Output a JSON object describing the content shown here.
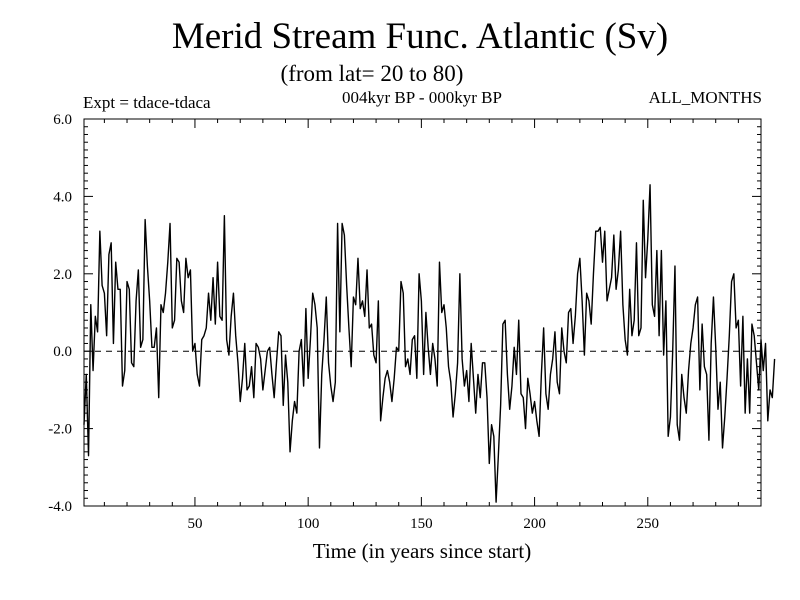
{
  "chart_data": {
    "type": "line",
    "title": "Merid Stream Func. Atlantic (Sv)",
    "subtitle": "(from lat= 20 to 80)",
    "left_label": "Expt = tdace-tdaca",
    "center_label": "004kyr BP - 000kyr BP",
    "right_label": "ALL_MONTHS",
    "xlabel": "Time (in years since start)",
    "ylabel": "",
    "xlim": [
      1,
      300
    ],
    "ylim": [
      -4.0,
      6.0
    ],
    "xticks": [
      50,
      100,
      150,
      200,
      250
    ],
    "xtick_labels": [
      "50",
      "100",
      "150",
      "200",
      "250"
    ],
    "yticks": [
      -4.0,
      -2.0,
      0.0,
      2.0,
      4.0,
      6.0
    ],
    "ytick_labels": [
      "-4.0",
      "-2.0",
      "0.0",
      "2.0",
      "4.0",
      "6.0"
    ],
    "zero_line": 0.0,
    "series": [
      {
        "name": "tdace-tdaca",
        "x_start": 1,
        "x_step": 1,
        "values": [
          -1.9,
          -0.6,
          -2.7,
          1.2,
          -0.5,
          0.9,
          0.5,
          3.1,
          1.7,
          1.5,
          0.4,
          2.5,
          2.8,
          0.2,
          2.3,
          1.6,
          1.6,
          -0.9,
          -0.5,
          1.8,
          1.6,
          -0.3,
          -0.4,
          1.3,
          2.1,
          0.1,
          0.3,
          3.4,
          2.2,
          1.3,
          0.1,
          0.1,
          0.6,
          -1.2,
          1.2,
          1.0,
          1.5,
          2.3,
          3.3,
          0.6,
          0.8,
          2.4,
          2.3,
          1.3,
          1.0,
          2.4,
          1.9,
          2.1,
          0.0,
          0.2,
          -0.6,
          -0.9,
          0.3,
          0.4,
          0.6,
          1.5,
          0.8,
          1.9,
          0.7,
          2.3,
          0.9,
          0.8,
          3.5,
          0.3,
          -0.1,
          0.9,
          1.5,
          0.4,
          -0.3,
          -1.3,
          -0.7,
          0.2,
          -1.0,
          -0.9,
          -0.4,
          -1.2,
          0.2,
          0.1,
          -0.2,
          -1.0,
          -0.5,
          0.0,
          0.1,
          -0.6,
          -1.2,
          -0.3,
          0.5,
          0.4,
          -1.4,
          -0.1,
          -0.8,
          -2.6,
          -1.8,
          -1.3,
          -1.6,
          0.0,
          0.3,
          -0.9,
          1.1,
          -0.7,
          0.3,
          1.5,
          1.2,
          0.6,
          -2.5,
          -0.6,
          0.3,
          1.4,
          -0.3,
          -0.9,
          -1.3,
          -0.8,
          3.3,
          0.5,
          3.3,
          3.0,
          1.7,
          0.6,
          -0.4,
          1.4,
          1.2,
          2.4,
          1.1,
          1.3,
          0.9,
          2.1,
          0.6,
          0.7,
          -0.1,
          -0.3,
          1.3,
          -1.8,
          -1.2,
          -0.7,
          -0.5,
          -0.8,
          -1.3,
          -0.7,
          0.1,
          0.0,
          1.8,
          1.5,
          -0.4,
          -0.2,
          -0.6,
          0.3,
          0.4,
          -0.7,
          2.0,
          1.3,
          -0.6,
          1.0,
          0.1,
          -0.6,
          0.2,
          -0.2,
          -0.9,
          2.3,
          1.0,
          1.2,
          0.6,
          -0.4,
          -0.8,
          -1.7,
          -1.1,
          -0.3,
          2.0,
          -0.2,
          -0.9,
          -0.5,
          -1.3,
          0.2,
          -0.7,
          -1.6,
          -0.6,
          -1.2,
          -0.3,
          -0.3,
          -1.2,
          -2.9,
          -1.9,
          -2.2,
          -3.9,
          -2.7,
          -1.4,
          0.7,
          0.8,
          -0.6,
          -1.5,
          -0.9,
          0.1,
          -0.6,
          0.8,
          -1.1,
          -1.2,
          -2.0,
          -0.7,
          -1.1,
          -1.6,
          -1.3,
          -1.8,
          -2.2,
          -0.6,
          0.6,
          -1.1,
          -1.5,
          -0.6,
          -0.2,
          0.5,
          -0.8,
          -1.1,
          0.6,
          0.0,
          -0.3,
          1.0,
          1.1,
          0.2,
          0.9,
          2.0,
          2.4,
          1.3,
          -0.1,
          1.5,
          1.3,
          0.7,
          2.0,
          3.1,
          3.1,
          3.2,
          2.3,
          3.1,
          1.3,
          1.6,
          1.9,
          3.0,
          1.6,
          2.1,
          3.1,
          1.2,
          0.3,
          -0.1,
          1.6,
          0.4,
          0.8,
          2.8,
          0.4,
          0.6,
          3.9,
          1.9,
          2.9,
          4.3,
          1.2,
          0.9,
          2.6,
          0.4,
          2.6,
          -0.1,
          1.3,
          -2.2,
          -1.7,
          0.0,
          2.2,
          -1.9,
          -2.3,
          -0.6,
          -1.2,
          -1.6,
          -0.5,
          0.2,
          0.6,
          1.2,
          1.4,
          -1.0,
          0.7,
          -0.4,
          -0.6,
          -2.3,
          0.2,
          1.4,
          0.1,
          -1.5,
          -0.8,
          -2.5,
          -1.7,
          -0.7,
          0.4,
          1.8,
          2.0,
          0.6,
          0.8,
          -0.9,
          0.9,
          -1.6,
          -0.2,
          -1.6,
          0.7,
          0.4,
          -0.3,
          -1.0,
          0.3,
          -0.5,
          0.2,
          -1.8,
          -1.0,
          -1.2,
          -0.2
        ]
      }
    ]
  }
}
